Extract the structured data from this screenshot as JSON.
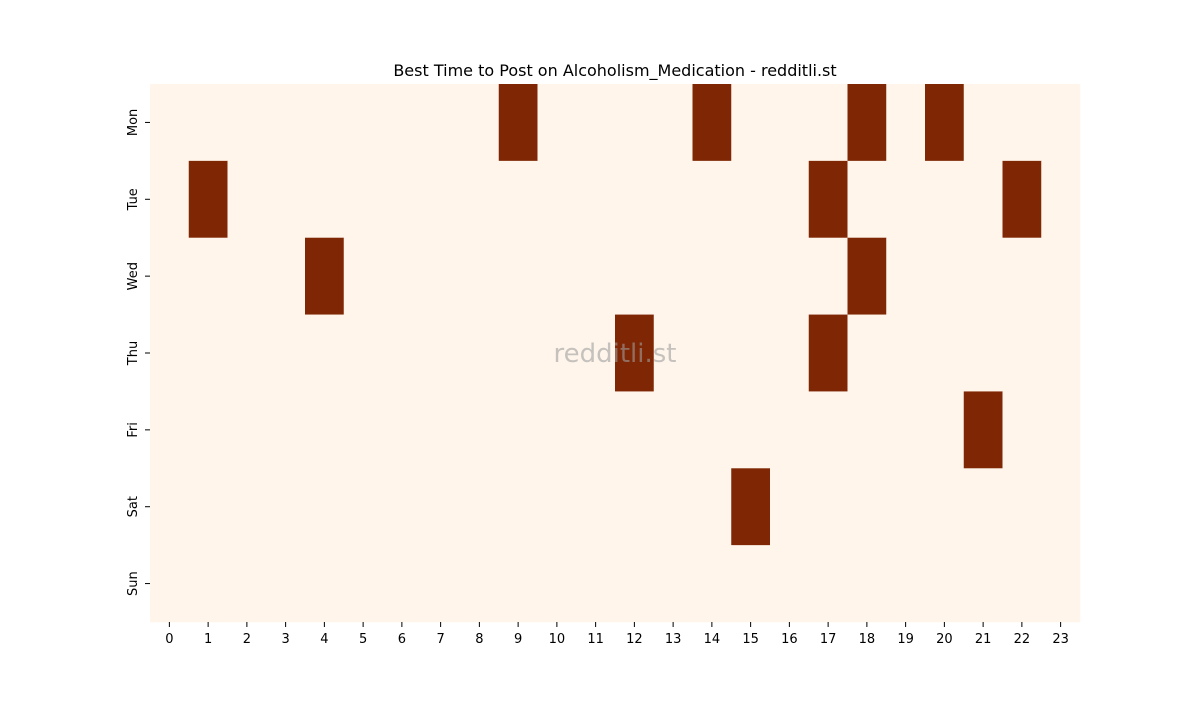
{
  "chart_data": {
    "type": "heatmap",
    "title": "Best Time to Post on Alcoholism_Medication - redditli.st",
    "xlabel": "",
    "ylabel": "",
    "x_categories": [
      "0",
      "1",
      "2",
      "3",
      "4",
      "5",
      "6",
      "7",
      "8",
      "9",
      "10",
      "11",
      "12",
      "13",
      "14",
      "15",
      "16",
      "17",
      "18",
      "19",
      "20",
      "21",
      "22",
      "23"
    ],
    "y_categories": [
      "Mon",
      "Tue",
      "Wed",
      "Thu",
      "Fri",
      "Sat",
      "Sun"
    ],
    "values": [
      [
        0,
        0,
        0,
        0,
        0,
        0,
        0,
        0,
        0,
        1,
        0,
        0,
        0,
        0,
        1,
        0,
        0,
        0,
        1,
        0,
        1,
        0,
        0,
        0
      ],
      [
        0,
        1,
        0,
        0,
        0,
        0,
        0,
        0,
        0,
        0,
        0,
        0,
        0,
        0,
        0,
        0,
        0,
        1,
        0,
        0,
        0,
        0,
        1,
        0
      ],
      [
        0,
        0,
        0,
        0,
        1,
        0,
        0,
        0,
        0,
        0,
        0,
        0,
        0,
        0,
        0,
        0,
        0,
        0,
        1,
        0,
        0,
        0,
        0,
        0
      ],
      [
        0,
        0,
        0,
        0,
        0,
        0,
        0,
        0,
        0,
        0,
        0,
        0,
        1,
        0,
        0,
        0,
        0,
        1,
        0,
        0,
        0,
        0,
        0,
        0
      ],
      [
        0,
        0,
        0,
        0,
        0,
        0,
        0,
        0,
        0,
        0,
        0,
        0,
        0,
        0,
        0,
        0,
        0,
        0,
        0,
        0,
        0,
        1,
        0,
        0
      ],
      [
        0,
        0,
        0,
        0,
        0,
        0,
        0,
        0,
        0,
        0,
        0,
        0,
        0,
        0,
        0,
        1,
        0,
        0,
        0,
        0,
        0,
        0,
        0,
        0
      ],
      [
        0,
        0,
        0,
        0,
        0,
        0,
        0,
        0,
        0,
        0,
        0,
        0,
        0,
        0,
        0,
        0,
        0,
        0,
        0,
        0,
        0,
        0,
        0,
        0
      ]
    ],
    "colors": {
      "low": "#fff5eb",
      "high": "#7f2704"
    },
    "watermark": "redditli.st",
    "legend": "none",
    "grid": false
  }
}
